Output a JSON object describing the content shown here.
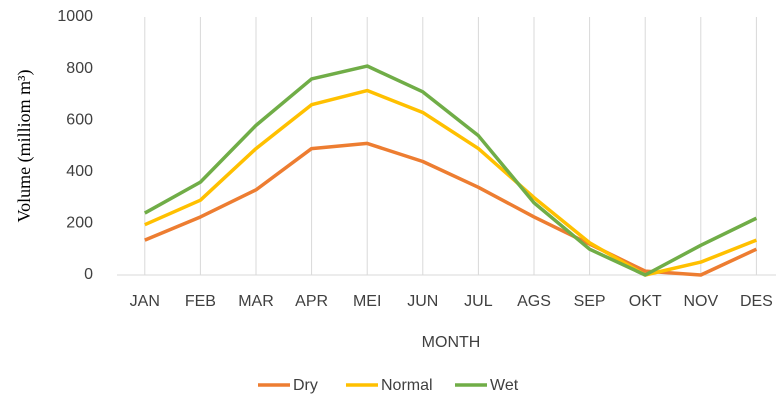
{
  "chart_data": {
    "type": "line",
    "x_label": "MONTH",
    "y_label": "Volume (milliom m³)",
    "categories": [
      "JAN",
      "FEB",
      "MAR",
      "APR",
      "MEI",
      "JUN",
      "JUL",
      "AGS",
      "SEP",
      "OKT",
      "NOV",
      "DES"
    ],
    "series": [
      {
        "name": "Dry",
        "color": "#ed7d31",
        "values": [
          135,
          225,
          330,
          490,
          510,
          440,
          340,
          225,
          120,
          15,
          0,
          100
        ]
      },
      {
        "name": "Normal",
        "color": "#ffc000",
        "values": [
          195,
          290,
          490,
          660,
          715,
          630,
          490,
          300,
          125,
          0,
          50,
          135
        ]
      },
      {
        "name": "Wet",
        "color": "#70ad47",
        "values": [
          240,
          360,
          580,
          760,
          810,
          710,
          540,
          280,
          100,
          0,
          115,
          220
        ]
      }
    ],
    "ylim": [
      0,
      1000
    ],
    "yticks": [
      0,
      200,
      400,
      600,
      800,
      1000
    ],
    "grid": "x",
    "legend": "bottom"
  }
}
